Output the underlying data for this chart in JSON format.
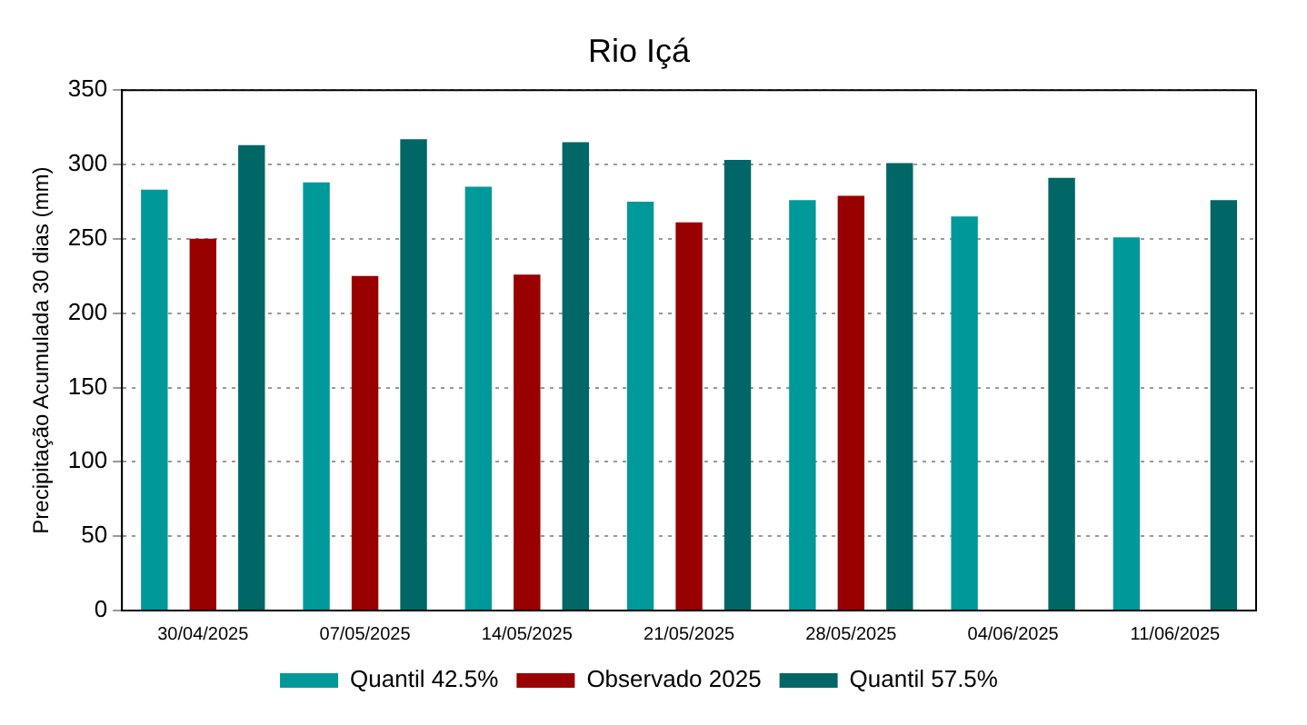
{
  "chart_data": {
    "type": "bar",
    "title": "Rio Içá",
    "ylabel": "Precipitação Acumulada 30 dias (mm)",
    "categories": [
      "30/04/2025",
      "07/05/2025",
      "14/05/2025",
      "21/05/2025",
      "28/05/2025",
      "04/06/2025",
      "11/06/2025"
    ],
    "series": [
      {
        "name": "Quantil 42.5%",
        "color": "#009999",
        "values": [
          283,
          288,
          285,
          275,
          276,
          265,
          251
        ]
      },
      {
        "name": "Observado 2025",
        "color": "#990000",
        "values": [
          250,
          225,
          226,
          261,
          279,
          null,
          null
        ]
      },
      {
        "name": "Quantil 57.5%",
        "color": "#006666",
        "values": [
          313,
          317,
          315,
          303,
          301,
          291,
          276
        ]
      }
    ],
    "ylim": [
      0,
      350
    ],
    "yticks": [
      0,
      50,
      100,
      150,
      200,
      250,
      300,
      350
    ],
    "grid": "y",
    "legend": "bottom"
  }
}
